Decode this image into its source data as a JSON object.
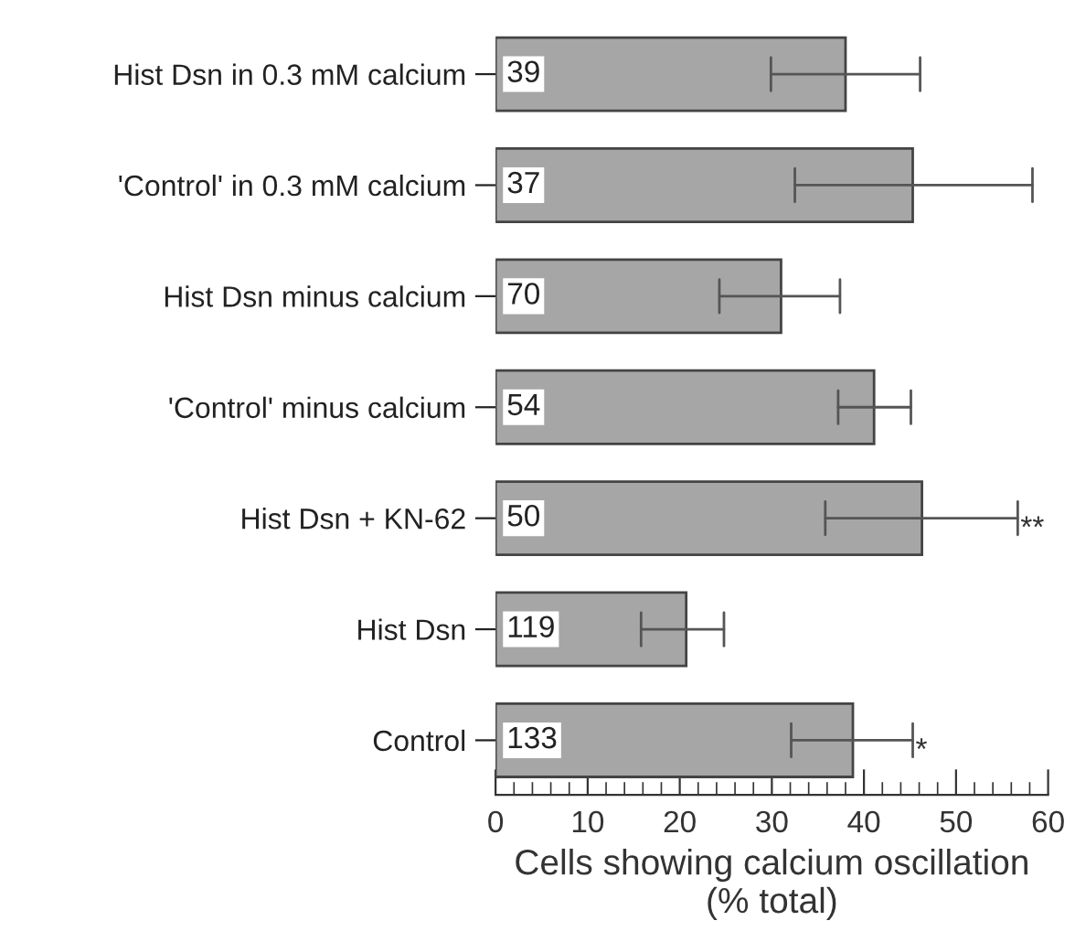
{
  "chart_data": {
    "type": "bar",
    "orientation": "horizontal",
    "xlabel": "Cells showing calcium oscillation\n(% total)",
    "categories": [
      "Hist Dsn in 0.3 mM calcium",
      "'Control' in 0.3 mM calcium",
      "Hist Dsn minus calcium",
      "'Control' minus calcium",
      "Hist Dsn + KN-62",
      "Hist Dsn",
      "Control"
    ],
    "values": [
      38,
      45.3,
      31,
      41.1,
      46.3,
      20.7,
      38.8
    ],
    "errors": [
      [
        29.9,
        46.1
      ],
      [
        32.5,
        58.3
      ],
      [
        24.3,
        37.4
      ],
      [
        37.2,
        45.1
      ],
      [
        35.8,
        56.7
      ],
      [
        15.8,
        24.8
      ],
      [
        32.1,
        45.3
      ]
    ],
    "color": "#a6a6a6",
    "xlim": [
      0,
      60
    ],
    "xticks": [
      0,
      {
        "value": 2,
        "label": null
      },
      {
        "value": 4,
        "label": null
      },
      {
        "value": 6,
        "label": null
      },
      {
        "value": 8,
        "label": null
      },
      10,
      {
        "value": 12,
        "label": null
      },
      {
        "value": 14,
        "label": null
      },
      {
        "value": 16,
        "label": null
      },
      {
        "value": 18,
        "label": null
      },
      20,
      {
        "value": 22,
        "label": null
      },
      {
        "value": 24,
        "label": null
      },
      {
        "value": 26,
        "label": null
      },
      {
        "value": 28,
        "label": null
      },
      30,
      {
        "value": 32,
        "label": null
      },
      {
        "value": 34,
        "label": null
      },
      {
        "value": 36,
        "label": null
      },
      {
        "value": 38,
        "label": null
      },
      40,
      {
        "value": 42,
        "label": null
      },
      {
        "value": 44,
        "label": null
      },
      {
        "value": 46,
        "label": null
      },
      {
        "value": 48,
        "label": null
      },
      50,
      {
        "value": 52,
        "label": null
      },
      {
        "value": 54,
        "label": null
      },
      {
        "value": 56,
        "label": null
      },
      {
        "value": 58,
        "label": null
      },
      60
    ],
    "annotations": [
      {
        "text": "39",
        "y": "Hist Dsn in 0.3 mM calcium"
      },
      {
        "text": "37",
        "y": "'Control' in 0.3 mM calcium"
      },
      {
        "text": "70",
        "y": "Hist Dsn minus calcium"
      },
      {
        "text": "54",
        "y": "'Control' minus calcium"
      },
      {
        "text": "50",
        "y": "Hist Dsn + KN-62"
      },
      {
        "text": "119",
        "y": "Hist Dsn"
      },
      {
        "text": "133",
        "y": "Control"
      },
      {
        "text": "**",
        "x": 56.7,
        "y": "Hist Dsn + KN-62"
      },
      {
        "text": "*",
        "x": 45.3,
        "y": "Control"
      }
    ],
    "grid": false,
    "legend": false
  }
}
